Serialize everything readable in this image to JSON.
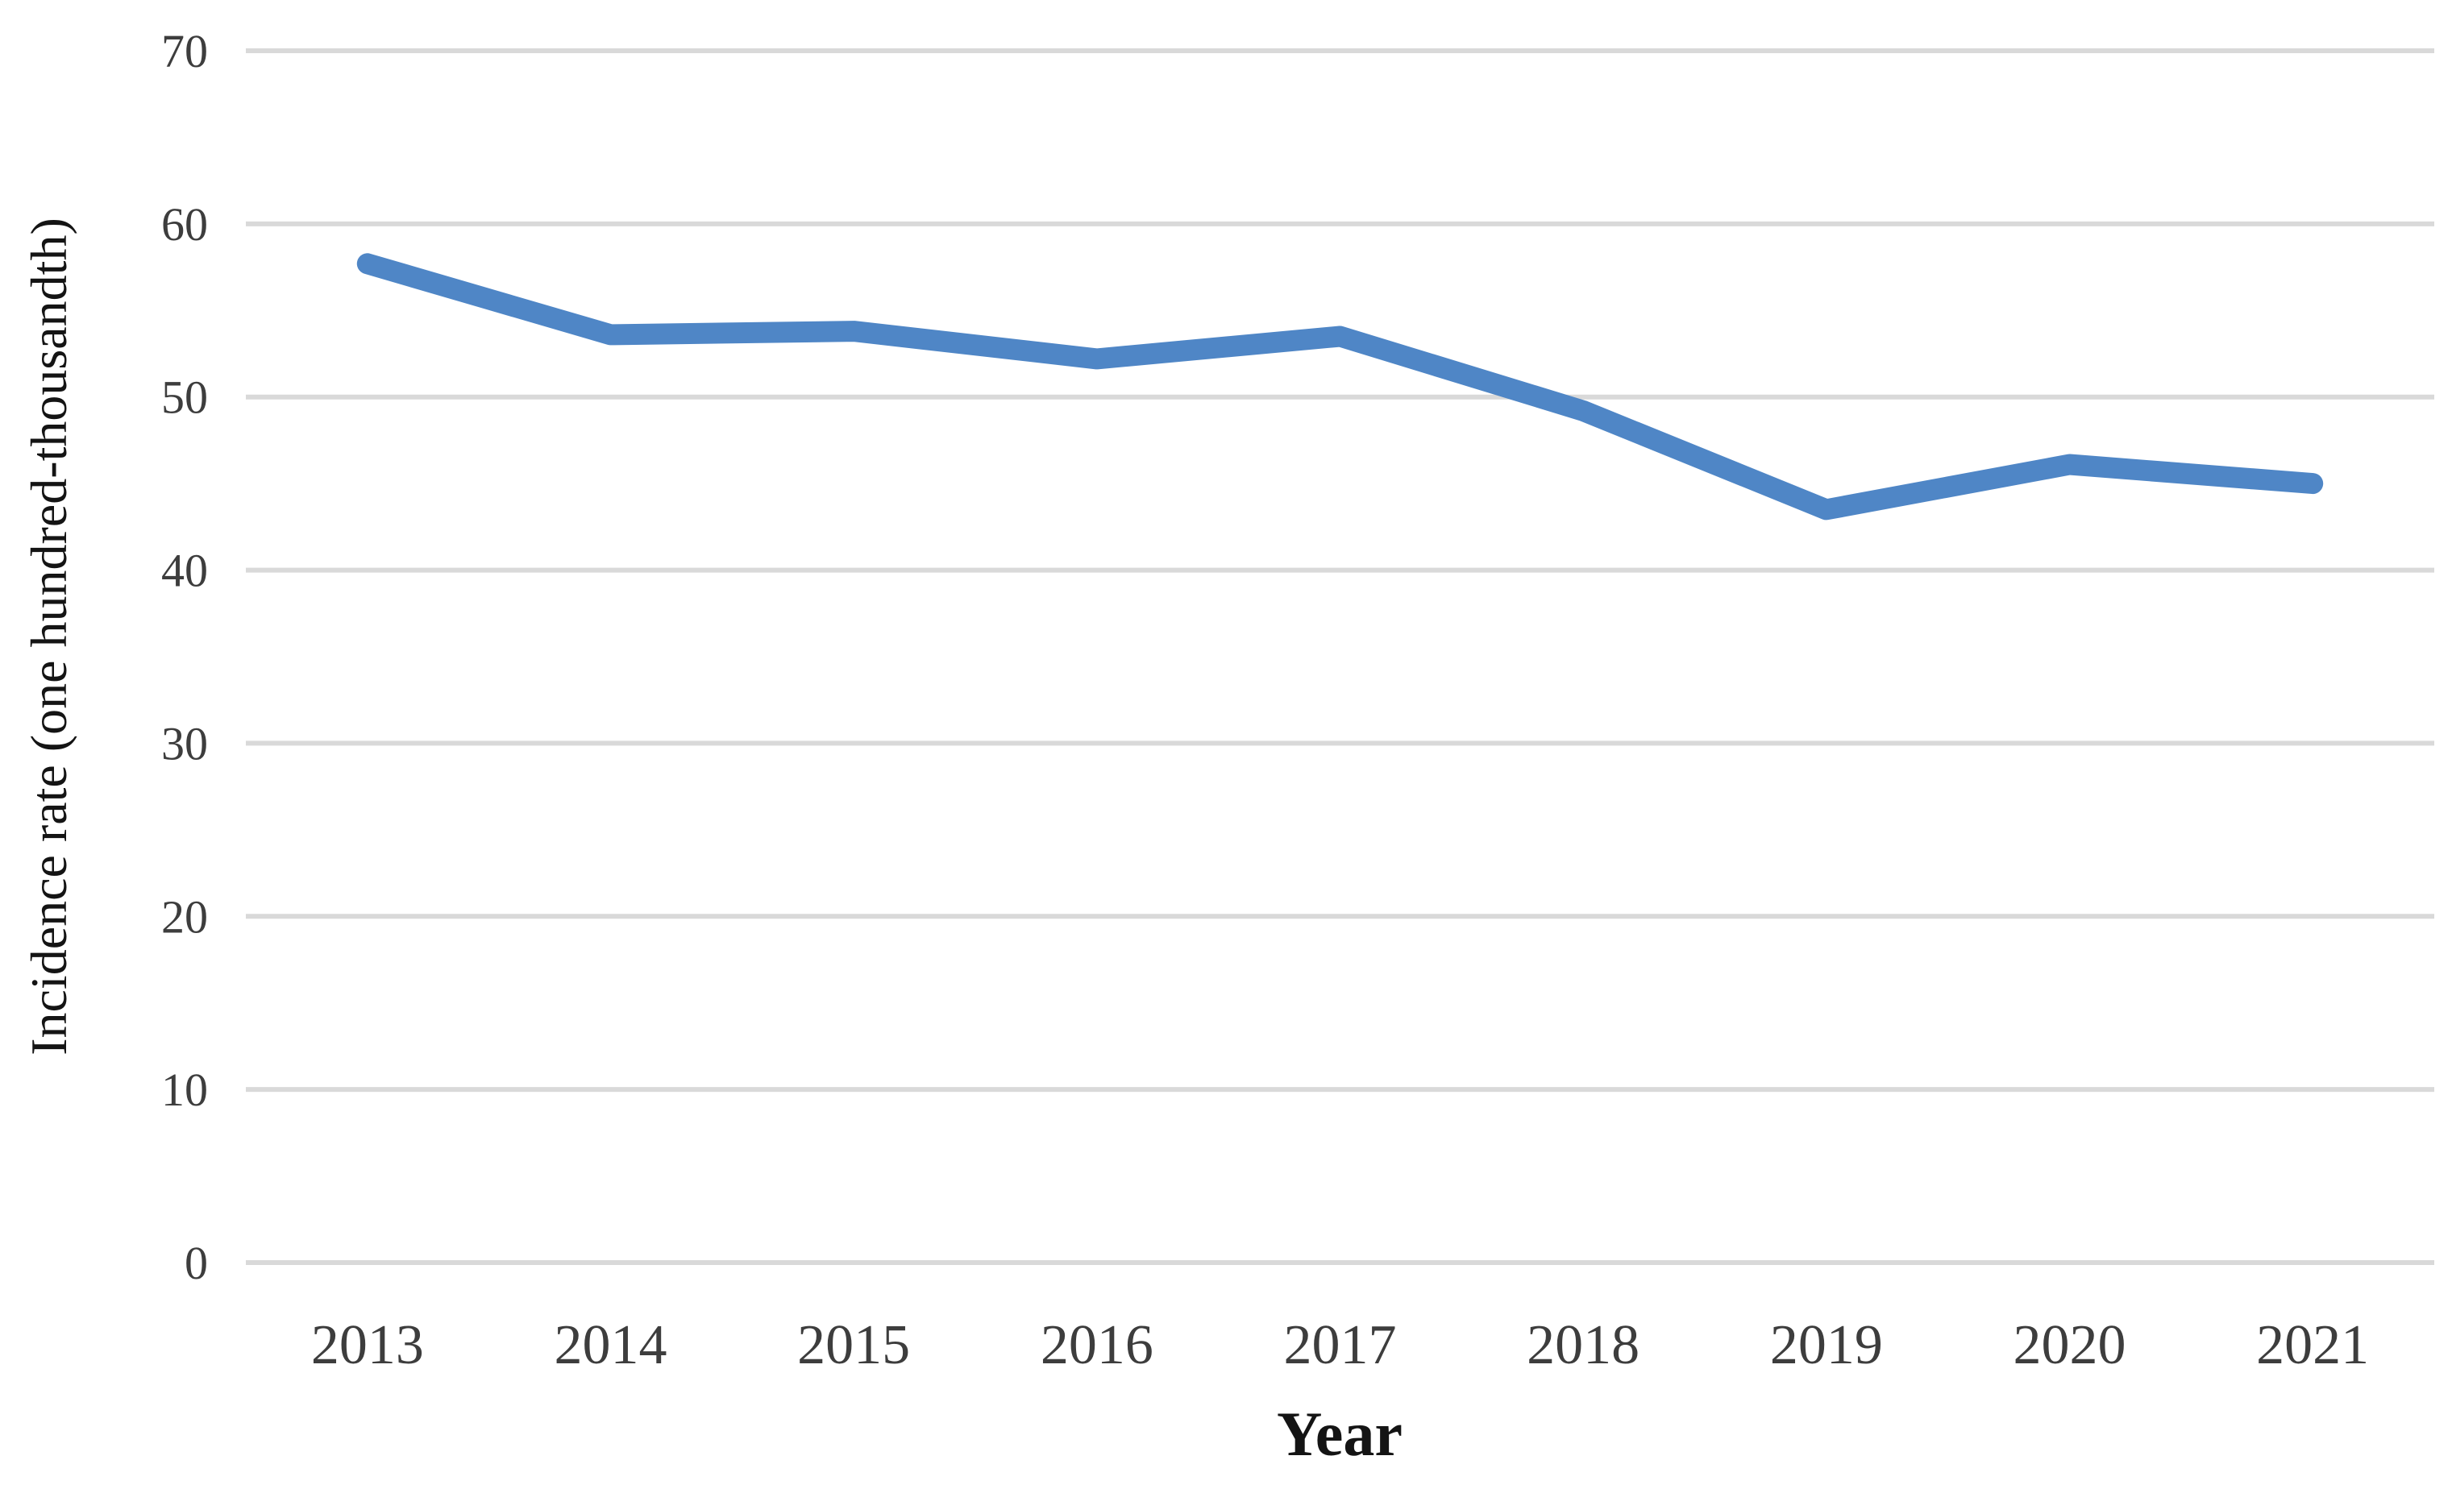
{
  "chart_data": {
    "type": "line",
    "x": [
      "2013",
      "2014",
      "2015",
      "2016",
      "2017",
      "2018",
      "2019",
      "2020",
      "2021"
    ],
    "series": [
      {
        "name": "Incidence rate",
        "values": [
          57.7,
          53.6,
          53.8,
          52.2,
          53.5,
          49.2,
          43.5,
          46.1,
          45.0
        ]
      }
    ],
    "title": "",
    "xlabel": "Year",
    "ylabel": "Incidence rate (one hundred-thousandth)",
    "ylim": [
      0,
      70
    ],
    "yticks": [
      0,
      10,
      20,
      30,
      40,
      50,
      60,
      70
    ],
    "grid": "horizontal",
    "legend_position": "none",
    "line_color": "#4f86c6",
    "grid_color": "#d9d9d9",
    "tick_text_color": "#3d3d3d",
    "title_text_color": "#141414"
  }
}
